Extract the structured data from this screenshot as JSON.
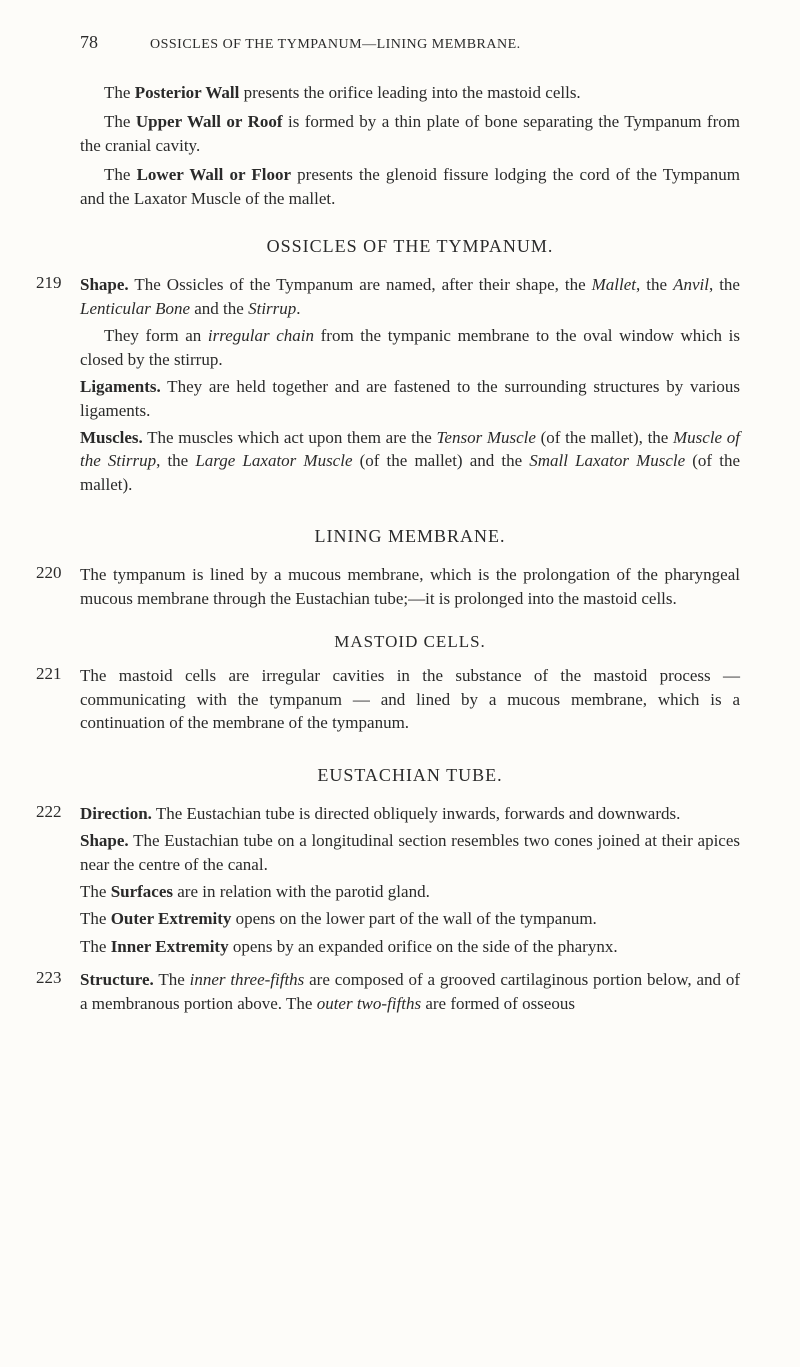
{
  "page_number": "78",
  "running_head": "OSSICLES OF THE TYMPANUM—LINING MEMBRANE.",
  "intro_paragraphs": {
    "p1": {
      "lead": "The ",
      "bold": "Posterior Wall",
      "rest": " presents the orifice leading into the mastoid cells."
    },
    "p2": {
      "lead": "The ",
      "bold": "Upper Wall or Roof",
      "rest": " is formed by a thin plate of bone separating the Tympanum from the cranial cavity."
    },
    "p3": {
      "lead": "The ",
      "bold": "Lower Wall or Floor",
      "rest": " presents the glenoid fissure lodging the cord of the Tympanum and the Laxator Muscle of the mallet."
    }
  },
  "section_ossicles": {
    "heading": "OSSICLES OF THE TYMPANUM.",
    "num": "219",
    "p1": {
      "bold": "Shape.",
      "rest_a": "  The Ossicles of the Tympanum are named, after their shape, the ",
      "i1": "Mallet",
      "mid1": ", the ",
      "i2": "Anvil",
      "mid2": ", the ",
      "i3": "Lenticular Bone",
      "mid3": " and the ",
      "i4": "Stirrup",
      "end": "."
    },
    "p2": {
      "lead": "They form an ",
      "i1": "irregular chain",
      "rest": " from the tympanic membrane to the oval window which is closed by the stirrup."
    },
    "p3": {
      "bold": "Ligaments.",
      "rest": "  They are held together and are fastened to the surrounding structures by various ligaments."
    },
    "p4": {
      "bold": "Muscles.",
      "rest_a": "  The muscles which act upon them are the ",
      "i1": "Tensor Muscle",
      "mid1": " (of the mallet), the ",
      "i2": "Muscle of the Stirrup",
      "mid2": ", the ",
      "i3": "Large Laxator Muscle",
      "mid3": " (of the mallet) and the ",
      "i4": "Small Laxator Muscle",
      "end": " (of the mallet)."
    }
  },
  "section_lining": {
    "heading": "LINING MEMBRANE.",
    "num": "220",
    "p1": "The tympanum is lined by a mucous membrane, which is the prolongation of the pharyngeal mucous membrane through the Eustachian tube;—it is prolonged into the mastoid cells."
  },
  "section_mastoid": {
    "heading": "MASTOID CELLS.",
    "num": "221",
    "p1": "The mastoid cells are irregular cavities in the substance of the mastoid process — communicating with the tympanum — and lined by a mucous membrane, which is a continuation of the membrane of the tympanum."
  },
  "section_eustachian": {
    "heading": "EUSTACHIAN TUBE.",
    "num1": "222",
    "p1": {
      "bold": "Direction.",
      "rest": "  The Eustachian tube is directed obliquely inwards, forwards and downwards."
    },
    "p2": {
      "bold": "Shape.",
      "rest": "  The Eustachian tube on a longitudinal section resembles two cones joined at their apices near the centre of the canal."
    },
    "p3": {
      "lead": "The ",
      "bold": "Surfaces",
      "rest": " are in relation with the parotid gland."
    },
    "p4": {
      "lead": "The ",
      "bold": "Outer Extremity",
      "rest": " opens on the lower part of the wall of the tympanum."
    },
    "p5": {
      "lead": "The ",
      "bold": "Inner Extremity",
      "rest": " opens by an expanded orifice on the side of the pharynx."
    },
    "num2": "223",
    "p6": {
      "bold": "Structure.",
      "rest_a": "  The ",
      "i1": "inner three-fifths",
      "mid": " are composed of a grooved cartilaginous portion below, and of a membranous portion above.  The ",
      "i2": "outer two-fifths",
      "end": " are formed of osseous"
    }
  }
}
